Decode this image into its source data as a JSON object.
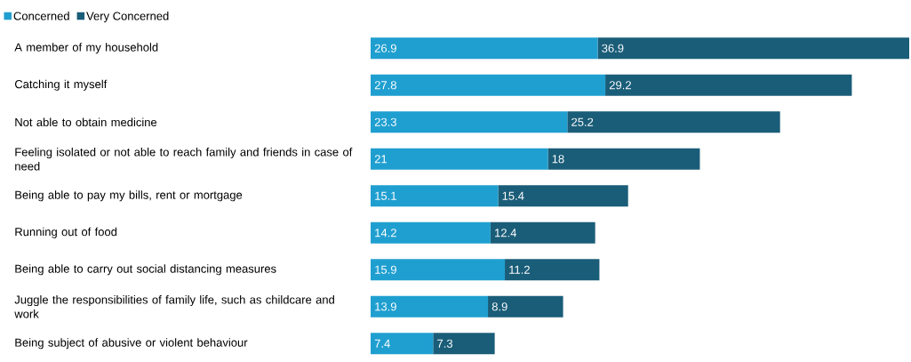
{
  "chart_data": {
    "type": "bar",
    "orientation": "horizontal",
    "stacked": true,
    "data_labels": true,
    "legend": "top left",
    "categories": [
      "A member of my household",
      "Catching it myself",
      "Not able to obtain medicine",
      "Feeling isolated or not able to reach family and friends in case of need",
      "Being able to pay my bills, rent or mortgage",
      "Running out of food",
      "Being able to carry out social distancing measures",
      "Juggle the responsibilities of family life, such as childcare and work",
      "Being subject of abusive or violent behaviour"
    ],
    "series": [
      {
        "name": "Concerned",
        "color": "#1f9fd0",
        "values": [
          26.9,
          27.8,
          23.3,
          21,
          15.1,
          14.2,
          15.9,
          13.9,
          7.4
        ]
      },
      {
        "name": "Very Concerned",
        "color": "#1a5d78",
        "values": [
          36.9,
          29.2,
          25.2,
          18,
          15.4,
          12.4,
          11.2,
          8.9,
          7.3
        ]
      }
    ]
  }
}
